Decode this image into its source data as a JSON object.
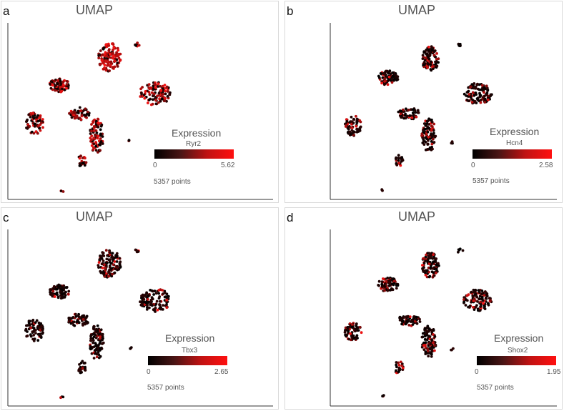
{
  "chart_data": [
    {
      "type": "scatter",
      "letter": "a",
      "title": "UMAP",
      "legend_title": "Expression",
      "gene": "Ryr2",
      "min_label": "0",
      "max_label": "5.62",
      "points_label": "5357 points",
      "colors": [
        "#000000",
        "#ff1010"
      ]
    },
    {
      "type": "scatter",
      "letter": "b",
      "title": "UMAP",
      "legend_title": "Expression",
      "gene": "Hcn4",
      "min_label": "0",
      "max_label": "2.58",
      "points_label": "5357 points",
      "colors": [
        "#000000",
        "#ff1010"
      ]
    },
    {
      "type": "scatter",
      "letter": "c",
      "title": "UMAP",
      "legend_title": "Expression",
      "gene": "Tbx3",
      "min_label": "0",
      "max_label": "2.65",
      "points_label": "5357 points",
      "colors": [
        "#000000",
        "#ff1010"
      ]
    },
    {
      "type": "scatter",
      "letter": "d",
      "title": "UMAP",
      "legend_title": "Expression",
      "gene": "Shox2",
      "min_label": "0",
      "max_label": "1.95",
      "points_label": "5357 points",
      "colors": [
        "#000000",
        "#ff1010"
      ]
    }
  ]
}
